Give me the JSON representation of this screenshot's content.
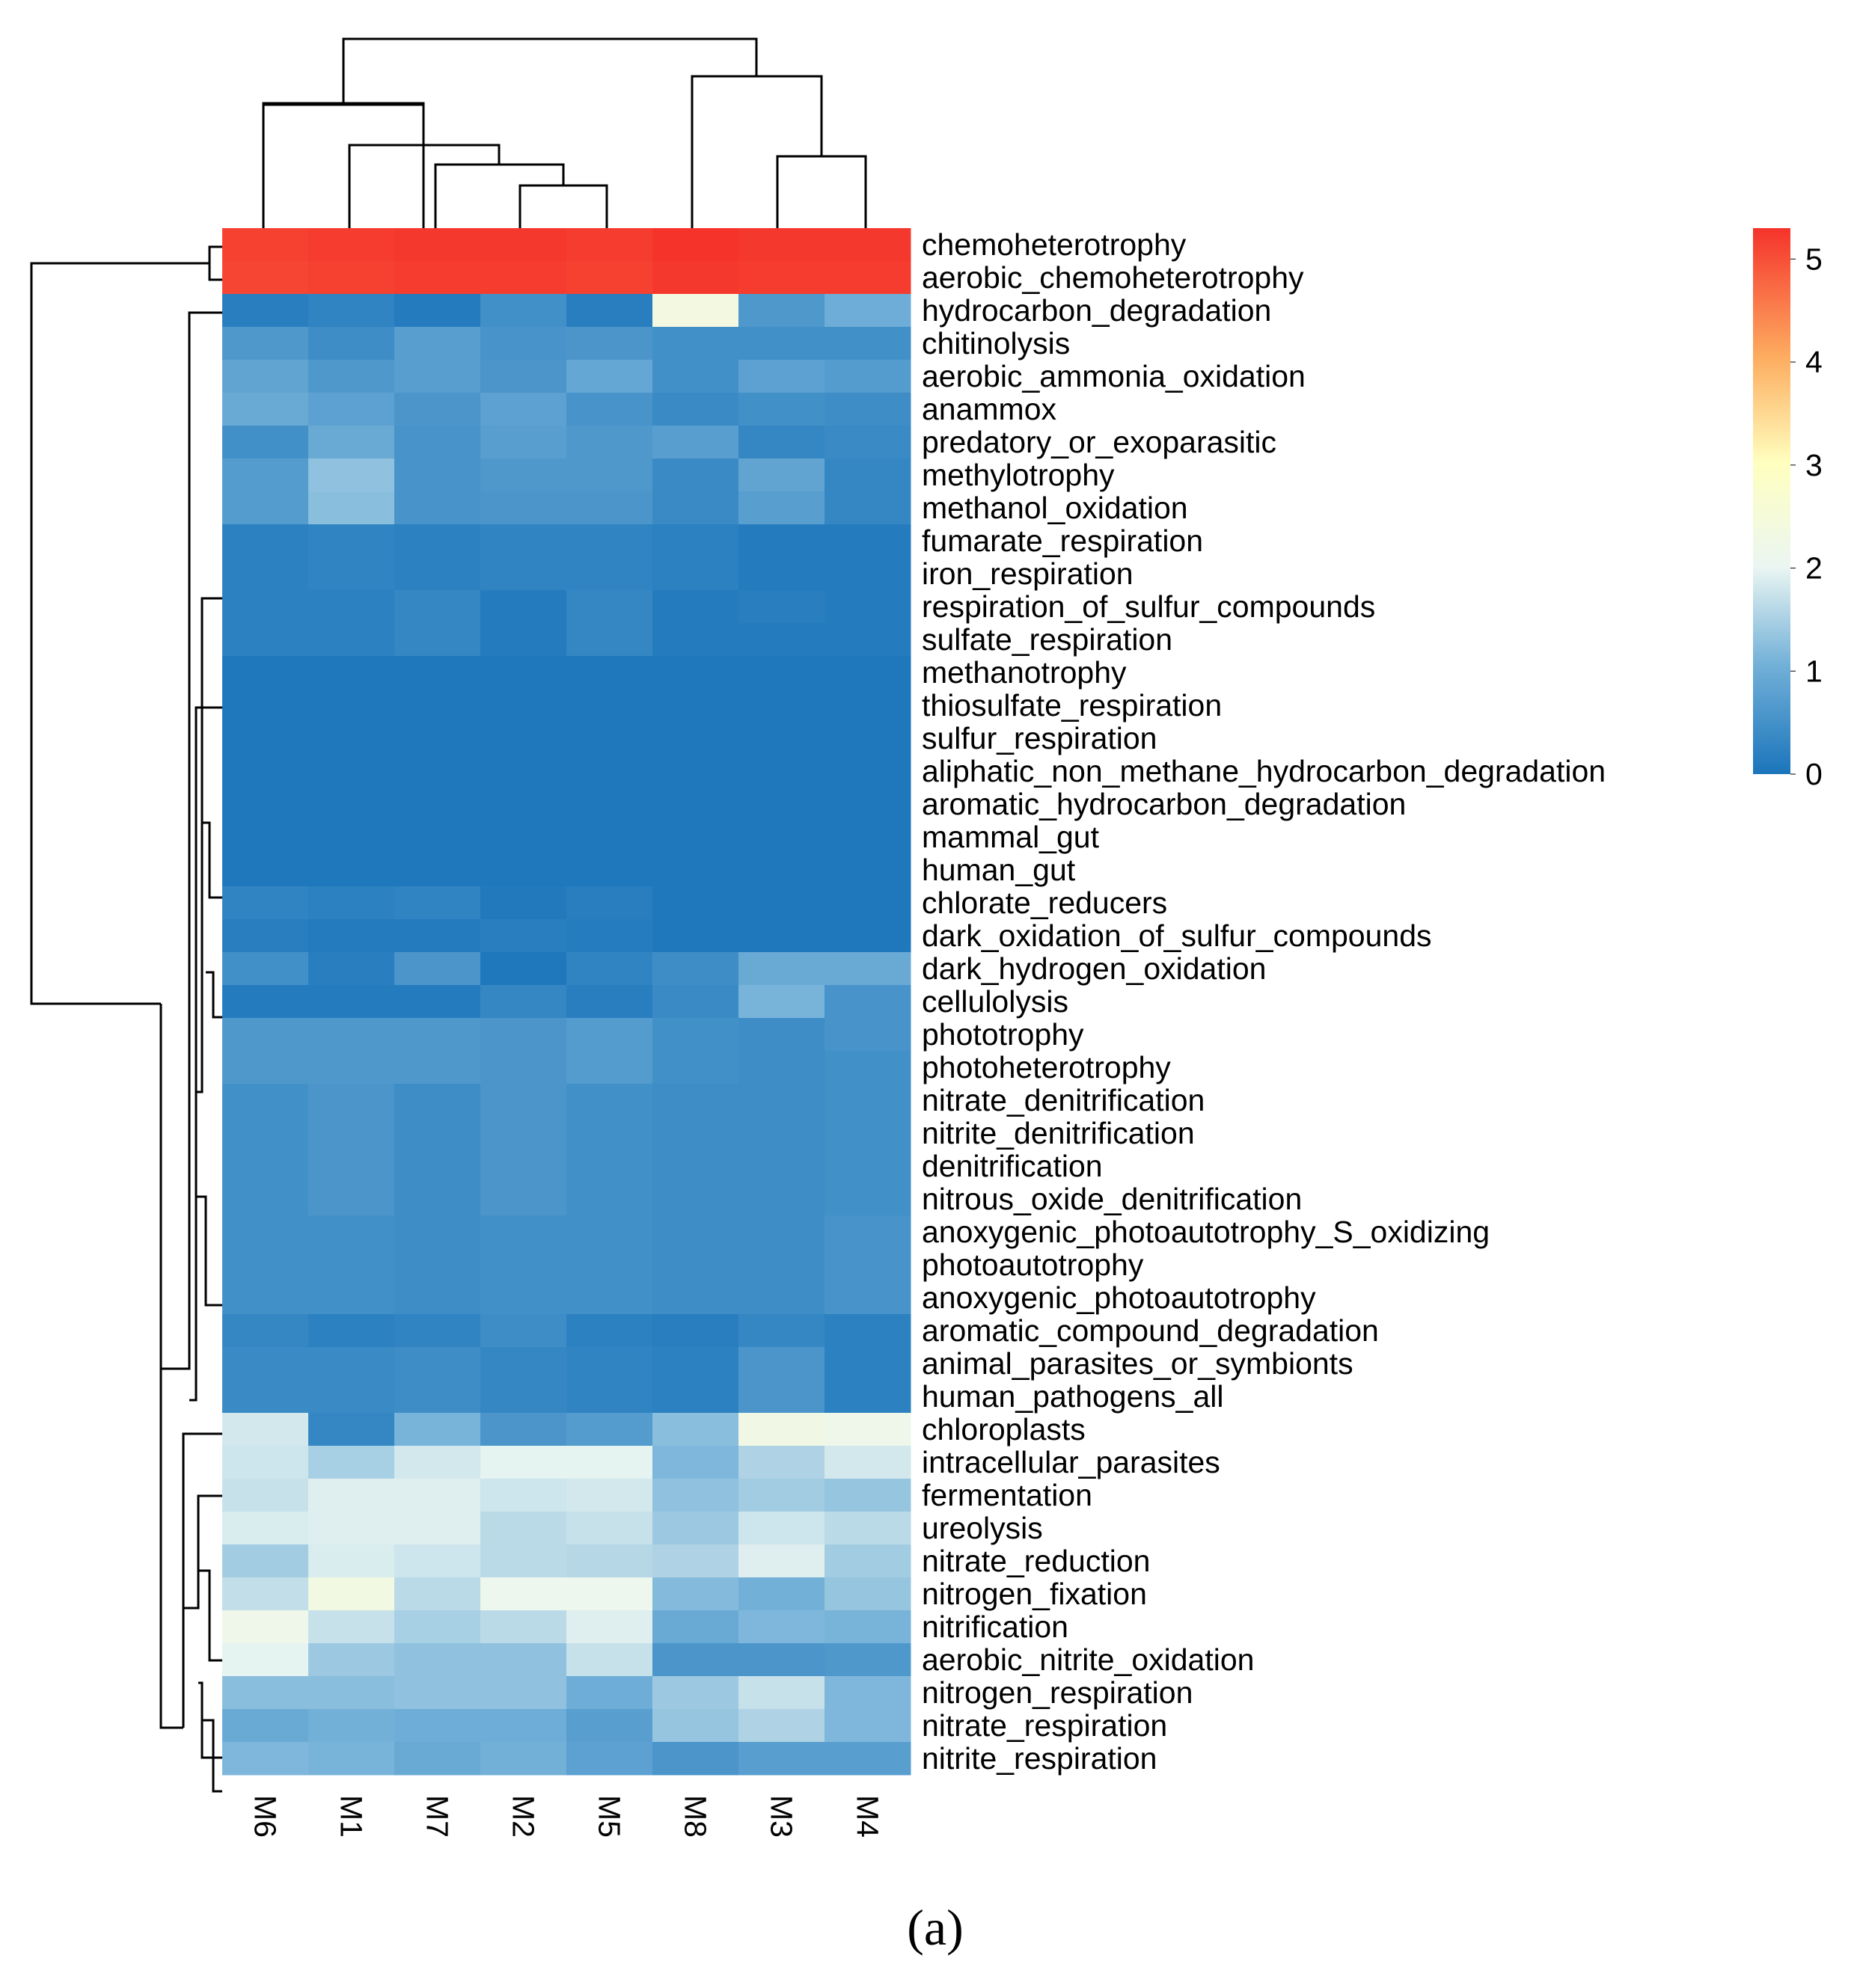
{
  "chart_data": {
    "type": "heatmap",
    "title": "",
    "caption": "(a)",
    "columns": [
      "M6",
      "M1",
      "M7",
      "M2",
      "M5",
      "M8",
      "M3",
      "M4"
    ],
    "rows": [
      "chemoheterotrophy",
      "aerobic_chemoheterotrophy",
      "hydrocarbon_degradation",
      "chitinolysis",
      "aerobic_ammonia_oxidation",
      "anammox",
      "predatory_or_exoparasitic",
      "methylotrophy",
      "methanol_oxidation",
      "fumarate_respiration",
      "iron_respiration",
      "respiration_of_sulfur_compounds",
      "sulfate_respiration",
      "methanotrophy",
      "thiosulfate_respiration",
      "sulfur_respiration",
      "aliphatic_non_methane_hydrocarbon_degradation",
      "aromatic_hydrocarbon_degradation",
      "mammal_gut",
      "human_gut",
      "chlorate_reducers",
      "dark_oxidation_of_sulfur_compounds",
      "dark_hydrogen_oxidation",
      "cellulolysis",
      "phototrophy",
      "photoheterotrophy",
      "nitrate_denitrification",
      "nitrite_denitrification",
      "denitrification",
      "nitrous_oxide_denitrification",
      "anoxygenic_photoautotrophy_S_oxidizing",
      "photoautotrophy",
      "anoxygenic_photoautotrophy",
      "aromatic_compound_degradation",
      "animal_parasites_or_symbionts",
      "human_pathogens_all",
      "chloroplasts",
      "intracellular_parasites",
      "fermentation",
      "ureolysis",
      "nitrate_reduction",
      "nitrogen_fixation",
      "nitrification",
      "aerobic_nitrite_oxidation",
      "nitrogen_respiration",
      "nitrate_respiration",
      "nitrite_respiration"
    ],
    "values": [
      [
        5.15,
        5.2,
        5.25,
        5.25,
        5.2,
        5.3,
        5.25,
        5.25
      ],
      [
        5.1,
        5.15,
        5.2,
        5.2,
        5.15,
        5.25,
        5.2,
        5.2
      ],
      [
        0.15,
        0.25,
        0.1,
        0.45,
        0.15,
        2.35,
        0.6,
        0.95
      ],
      [
        0.6,
        0.4,
        0.7,
        0.5,
        0.55,
        0.45,
        0.45,
        0.45
      ],
      [
        0.8,
        0.6,
        0.7,
        0.55,
        0.85,
        0.45,
        0.75,
        0.65
      ],
      [
        0.9,
        0.75,
        0.55,
        0.75,
        0.5,
        0.35,
        0.45,
        0.4
      ],
      [
        0.45,
        0.9,
        0.5,
        0.7,
        0.6,
        0.7,
        0.3,
        0.35
      ],
      [
        0.65,
        1.25,
        0.5,
        0.6,
        0.6,
        0.35,
        0.8,
        0.3
      ],
      [
        0.65,
        1.2,
        0.5,
        0.55,
        0.55,
        0.35,
        0.7,
        0.3
      ],
      [
        0.2,
        0.25,
        0.2,
        0.25,
        0.25,
        0.2,
        0.1,
        0.1
      ],
      [
        0.2,
        0.25,
        0.2,
        0.25,
        0.25,
        0.2,
        0.1,
        0.1
      ],
      [
        0.2,
        0.2,
        0.3,
        0.1,
        0.3,
        0.1,
        0.15,
        0.1
      ],
      [
        0.2,
        0.2,
        0.3,
        0.1,
        0.3,
        0.1,
        0.1,
        0.1
      ],
      [
        0.05,
        0.05,
        0.05,
        0.05,
        0.05,
        0.05,
        0.05,
        0.05
      ],
      [
        0.05,
        0.05,
        0.05,
        0.05,
        0.05,
        0.05,
        0.05,
        0.05
      ],
      [
        0.05,
        0.05,
        0.05,
        0.05,
        0.05,
        0.05,
        0.05,
        0.05
      ],
      [
        0.05,
        0.05,
        0.05,
        0.05,
        0.05,
        0.05,
        0.05,
        0.05
      ],
      [
        0.05,
        0.05,
        0.05,
        0.05,
        0.05,
        0.05,
        0.05,
        0.05
      ],
      [
        0.05,
        0.05,
        0.05,
        0.05,
        0.05,
        0.05,
        0.05,
        0.05
      ],
      [
        0.05,
        0.05,
        0.05,
        0.05,
        0.05,
        0.05,
        0.05,
        0.05
      ],
      [
        0.25,
        0.2,
        0.25,
        0.08,
        0.15,
        0.05,
        0.05,
        0.05
      ],
      [
        0.15,
        0.1,
        0.1,
        0.15,
        0.12,
        0.05,
        0.05,
        0.05
      ],
      [
        0.45,
        0.15,
        0.55,
        0.05,
        0.25,
        0.4,
        0.9,
        0.9
      ],
      [
        0.1,
        0.1,
        0.1,
        0.3,
        0.15,
        0.35,
        1.05,
        0.5
      ],
      [
        0.6,
        0.6,
        0.6,
        0.55,
        0.65,
        0.45,
        0.4,
        0.5
      ],
      [
        0.6,
        0.6,
        0.6,
        0.55,
        0.65,
        0.45,
        0.4,
        0.45
      ],
      [
        0.45,
        0.55,
        0.4,
        0.55,
        0.45,
        0.4,
        0.4,
        0.45
      ],
      [
        0.45,
        0.55,
        0.4,
        0.55,
        0.45,
        0.4,
        0.4,
        0.45
      ],
      [
        0.45,
        0.55,
        0.4,
        0.55,
        0.45,
        0.4,
        0.4,
        0.45
      ],
      [
        0.45,
        0.55,
        0.4,
        0.55,
        0.45,
        0.4,
        0.4,
        0.45
      ],
      [
        0.45,
        0.45,
        0.4,
        0.45,
        0.45,
        0.4,
        0.4,
        0.5
      ],
      [
        0.45,
        0.45,
        0.4,
        0.45,
        0.45,
        0.4,
        0.4,
        0.5
      ],
      [
        0.45,
        0.45,
        0.4,
        0.45,
        0.45,
        0.4,
        0.4,
        0.5
      ],
      [
        0.3,
        0.2,
        0.25,
        0.4,
        0.2,
        0.15,
        0.3,
        0.2
      ],
      [
        0.35,
        0.35,
        0.4,
        0.3,
        0.25,
        0.2,
        0.55,
        0.2
      ],
      [
        0.35,
        0.35,
        0.4,
        0.3,
        0.25,
        0.2,
        0.55,
        0.2
      ],
      [
        1.8,
        0.3,
        1.05,
        0.55,
        0.65,
        1.2,
        2.25,
        2.15
      ],
      [
        1.75,
        1.45,
        1.8,
        1.95,
        1.95,
        1.1,
        1.5,
        1.8
      ],
      [
        1.7,
        1.9,
        1.9,
        1.75,
        1.8,
        1.25,
        1.4,
        1.3
      ],
      [
        1.85,
        1.9,
        1.9,
        1.6,
        1.7,
        1.35,
        1.75,
        1.6
      ],
      [
        1.4,
        1.85,
        1.75,
        1.6,
        1.55,
        1.5,
        1.9,
        1.4
      ],
      [
        1.65,
        2.3,
        1.6,
        2.1,
        2.1,
        1.15,
        1.0,
        1.3
      ],
      [
        2.15,
        1.7,
        1.45,
        1.6,
        1.9,
        0.9,
        1.1,
        1.05
      ],
      [
        1.95,
        1.35,
        1.25,
        1.25,
        1.7,
        0.55,
        0.55,
        0.6
      ],
      [
        1.2,
        1.2,
        1.25,
        1.25,
        0.95,
        1.35,
        1.7,
        1.1
      ],
      [
        0.9,
        1.0,
        0.95,
        0.95,
        0.7,
        1.3,
        1.5,
        1.1
      ],
      [
        1.1,
        1.05,
        0.9,
        1.0,
        0.75,
        0.55,
        0.7,
        0.7
      ]
    ],
    "colorbar": {
      "ticks": [
        "0",
        "1",
        "2",
        "3",
        "4",
        "5"
      ],
      "range": [
        0,
        5.3
      ],
      "colors": [
        "#1b75bb",
        "#ebf6f2",
        "#ffffbf",
        "#fee090",
        "#f46d43",
        "#f5332b"
      ]
    }
  }
}
